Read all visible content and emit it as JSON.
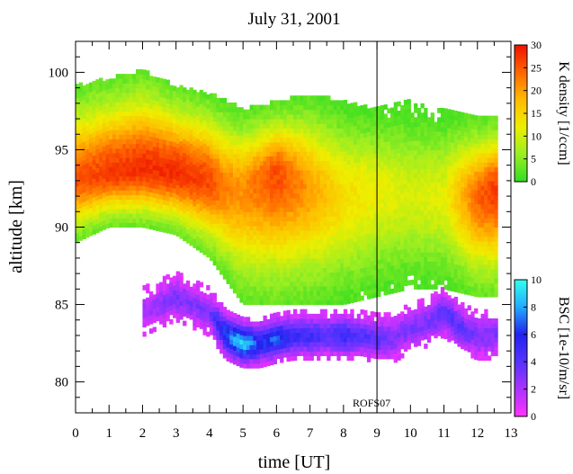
{
  "chart_data": {
    "type": "heatmap",
    "title": "July 31, 2001",
    "xlabel": "time [UT]",
    "ylabel": "altitude [km]",
    "xlim": [
      0,
      13
    ],
    "ylim": [
      78,
      102
    ],
    "x_ticks": [
      0,
      1,
      2,
      3,
      4,
      5,
      6,
      7,
      8,
      9,
      10,
      11,
      12,
      13
    ],
    "y_ticks": [
      80,
      85,
      90,
      95,
      100
    ],
    "data_end_time": 12.5,
    "vertical_marker": {
      "x": 9,
      "label": "ROFS07"
    },
    "colorbars": [
      {
        "name": "K density",
        "label": "K density [1/ccm]",
        "range": [
          0,
          30
        ],
        "ticks": [
          0,
          5,
          10,
          15,
          20,
          25,
          30
        ],
        "colors": [
          "#33dd22",
          "#99ee22",
          "#eeee00",
          "#ffbb00",
          "#ff6600",
          "#ee1100"
        ]
      },
      {
        "name": "BSC",
        "label": "BSC [1e-10/m/sr]",
        "range": [
          0,
          10
        ],
        "ticks": [
          0,
          2,
          4,
          6,
          8,
          10
        ],
        "colors": [
          "#ff33ff",
          "#aa33ff",
          "#5533ff",
          "#2222ee",
          "#22aaff",
          "#33ffee"
        ]
      }
    ],
    "k_layer": {
      "description_points_time": [
        0.0,
        1.0,
        2.0,
        3.0,
        4.0,
        4.5,
        5.0,
        6.0,
        7.0,
        8.0,
        9.0,
        10.0,
        11.0,
        12.0,
        12.5
      ],
      "upper_edge_km": [
        99,
        99.5,
        100,
        99,
        98.5,
        98,
        97.5,
        98,
        98.5,
        98,
        97.5,
        98,
        97.5,
        97,
        97
      ],
      "lower_edge_km": [
        89,
        90,
        90,
        89.5,
        88,
        86.5,
        85,
        85,
        85,
        85,
        85.5,
        86,
        86,
        85.5,
        85.5
      ],
      "peak_altitude_km": [
        93,
        93.5,
        93.8,
        93.5,
        93,
        92.5,
        92.5,
        93.5,
        92.5,
        92,
        92.5,
        92,
        92,
        92,
        92.5
      ],
      "peak_density": [
        25,
        27,
        28,
        28,
        26,
        22,
        21,
        26,
        20,
        14,
        12,
        10,
        11,
        24,
        27
      ]
    },
    "bsc_layer": {
      "description_points_time": [
        2.0,
        3.0,
        4.0,
        4.5,
        5.0,
        5.5,
        6.0,
        6.5,
        7.0,
        7.5,
        8.0,
        8.5,
        9.0,
        9.5,
        10.0,
        10.5,
        11.0,
        11.5,
        12.0,
        12.5
      ],
      "center_altitude_km": [
        84.5,
        85.5,
        84.5,
        83,
        82.5,
        82.5,
        82.8,
        83,
        83,
        83,
        83,
        83,
        82.8,
        82.8,
        83.5,
        83.8,
        84.5,
        83.5,
        83,
        83
      ],
      "peak_bsc": [
        2,
        3,
        3,
        7,
        9,
        6,
        7,
        5,
        5,
        4,
        5,
        4,
        4,
        3,
        3,
        3,
        4,
        4,
        3,
        3
      ]
    }
  }
}
